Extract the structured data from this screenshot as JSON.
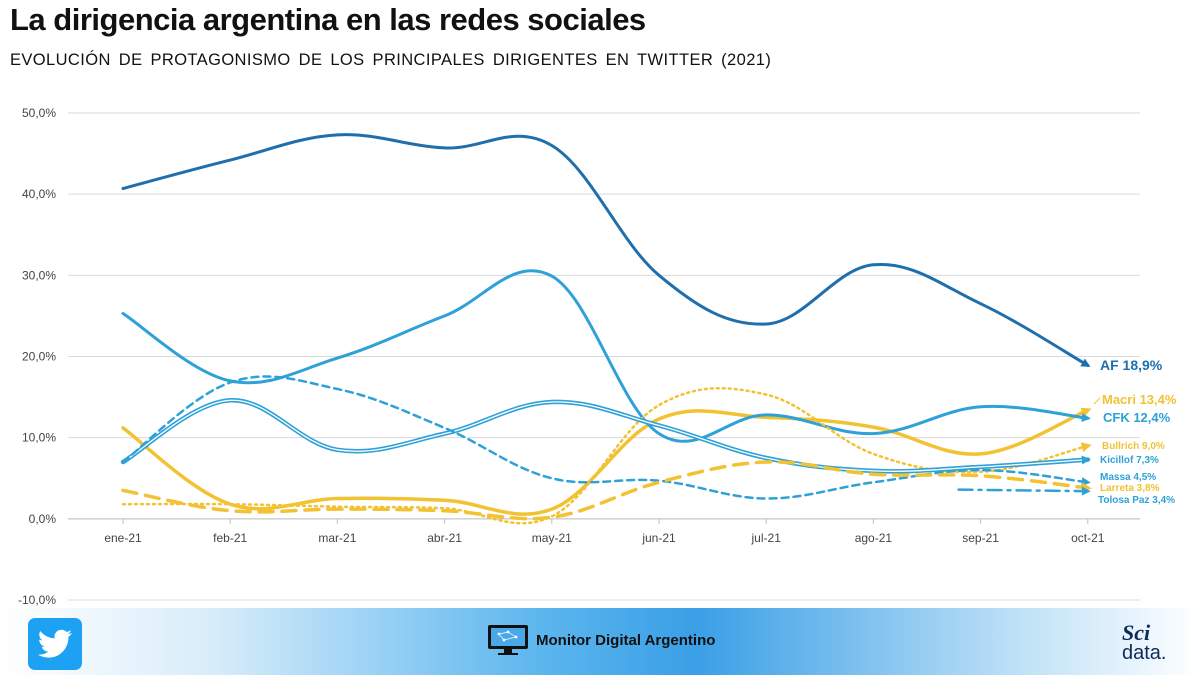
{
  "header": {
    "title": "La dirigencia argentina en las redes sociales",
    "subtitle": "EVOLUCIÓN DE PROTAGONISMO DE LOS PRINCIPALES DIRIGENTES EN TWITTER (2021)"
  },
  "chart_data": {
    "type": "line",
    "title": "La dirigencia argentina en las redes sociales",
    "subtitle": "EVOLUCIÓN DE PROTAGONISMO DE LOS PRINCIPALES DIRIGENTES EN TWITTER (2021)",
    "xlabel": "",
    "ylabel": "",
    "categories": [
      "ene-21",
      "feb-21",
      "mar-21",
      "abr-21",
      "may-21",
      "jun-21",
      "jul-21",
      "ago-21",
      "sep-21",
      "oct-21"
    ],
    "ylim": [
      -10,
      50
    ],
    "yticks": [
      -10,
      0,
      10,
      20,
      30,
      40,
      50
    ],
    "ytick_labels": [
      "-10,0%",
      "0,0%",
      "10,0%",
      "20,0%",
      "30,0%",
      "40,0%",
      "50,0%"
    ],
    "grid": true,
    "legend": "end-of-line labels",
    "series": [
      {
        "name": "AF",
        "label": "AF 18,9%",
        "color": "#1f6fad",
        "style": "solid",
        "width": 3,
        "label_size": 14,
        "values": [
          40.7,
          44.2,
          47.3,
          45.7,
          46.0,
          30.0,
          24.0,
          31.3,
          26.5,
          18.9
        ]
      },
      {
        "name": "Macri",
        "label": "Macri 13,4%",
        "color": "#f2c232",
        "style": "solid",
        "width": 3.5,
        "label_size": 13,
        "values": [
          11.2,
          1.8,
          2.5,
          2.3,
          1.2,
          12.3,
          12.5,
          11.3,
          8.0,
          13.4
        ]
      },
      {
        "name": "CFK",
        "label": "CFK 12,4%",
        "color": "#2ea1d8",
        "style": "solid",
        "width": 3,
        "label_size": 13,
        "values": [
          25.3,
          17.0,
          19.8,
          25.0,
          29.9,
          10.5,
          12.8,
          10.5,
          13.8,
          12.4
        ]
      },
      {
        "name": "Bullrich",
        "label": "Bullrich 9,0%",
        "color": "#f2c232",
        "style": "dotted",
        "width": 2.5,
        "label_size": 10,
        "values": [
          1.8,
          1.8,
          1.5,
          1.3,
          0.3,
          14.0,
          15.3,
          8.0,
          5.8,
          9.0
        ]
      },
      {
        "name": "Kicillof",
        "label": "Kicillof 7,3%",
        "color": "#2ea1d8",
        "style": "double",
        "width": 2,
        "label_size": 10,
        "values": [
          7.0,
          14.6,
          8.5,
          10.5,
          14.4,
          11.5,
          7.5,
          5.9,
          6.4,
          7.3
        ]
      },
      {
        "name": "Massa",
        "label": "Massa 4,5%",
        "color": "#2ea1d8",
        "style": "dashed",
        "width": 2.5,
        "label_size": 10,
        "values": [
          7.0,
          16.8,
          16.0,
          11.2,
          5.0,
          4.7,
          2.5,
          4.5,
          6.0,
          4.5
        ]
      },
      {
        "name": "Larreta",
        "label": "Larreta 3,8%",
        "color": "#f2c232",
        "style": "longdash",
        "width": 3.5,
        "label_size": 10,
        "values": [
          3.5,
          1.0,
          1.2,
          1.0,
          0.2,
          4.5,
          7.0,
          5.5,
          5.3,
          3.8
        ]
      },
      {
        "name": "Tolosa Paz",
        "label": "Tolosa Paz 3,4%",
        "color": "#2ea1d8",
        "style": "dashdot",
        "width": 2.5,
        "label_size": 10,
        "values": [
          null,
          null,
          null,
          null,
          null,
          null,
          null,
          null,
          3.6,
          3.4
        ]
      }
    ]
  },
  "footer": {
    "brand": "Monitor Digital Argentino",
    "logo_top": "Sci",
    "logo_bottom": "data.",
    "icons": [
      "twitter-bird-icon",
      "monitor-icon"
    ]
  }
}
